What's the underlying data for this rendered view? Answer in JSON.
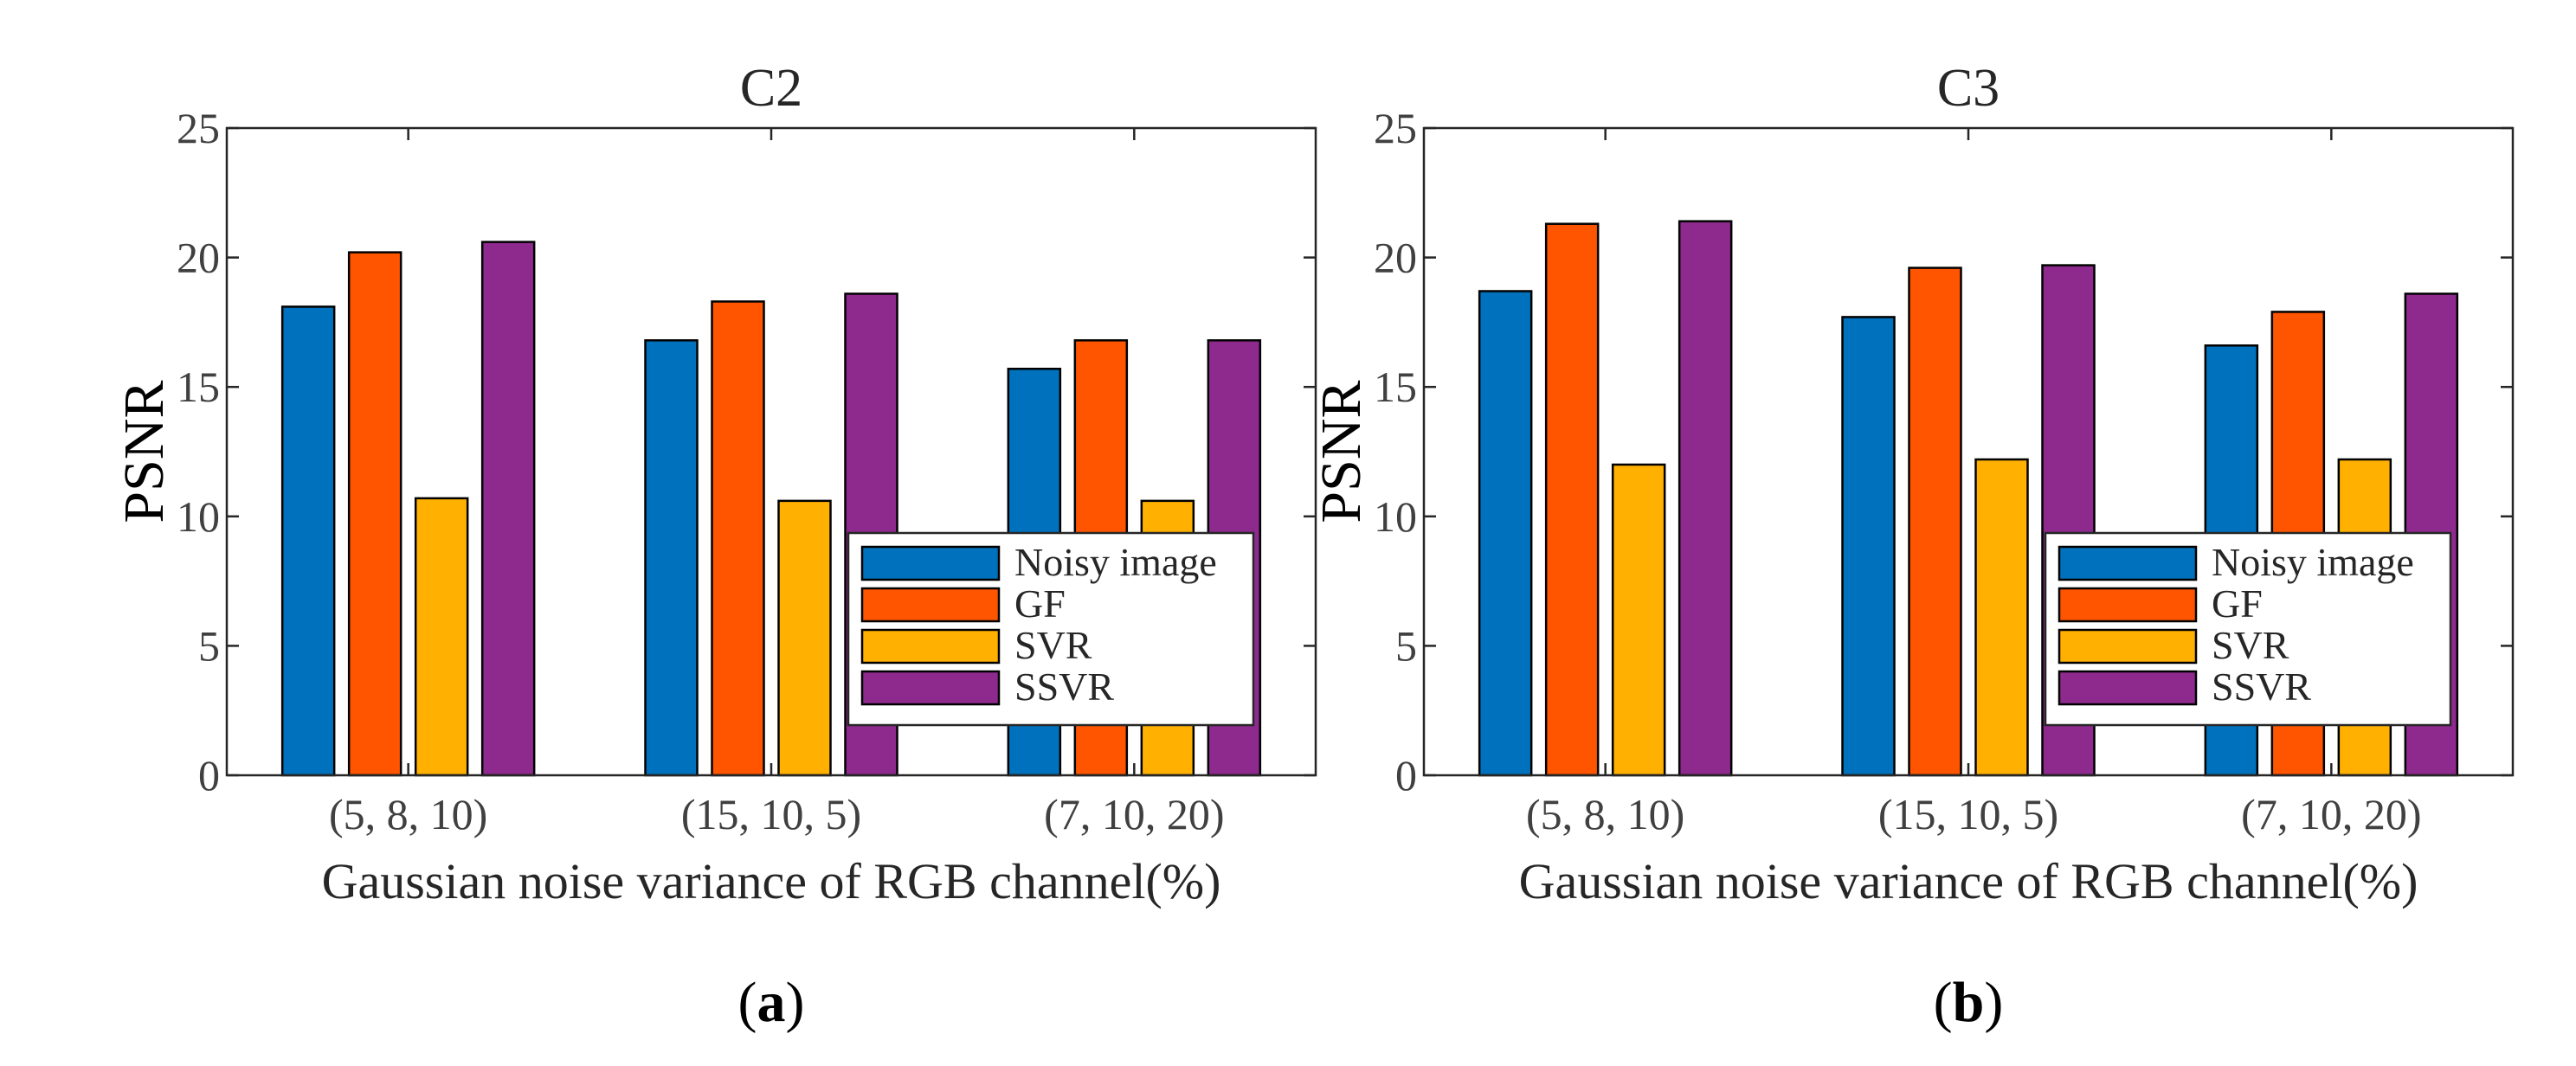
{
  "chart_data": [
    {
      "type": "bar",
      "title": "C2",
      "xlabel": "Gaussian noise variance of RGB channel(%)",
      "ylabel": "PSNR",
      "ylim": [
        0,
        25
      ],
      "yticks": [
        "0",
        "5",
        "10",
        "15",
        "20",
        "25"
      ],
      "categories": [
        "(5, 8, 10)",
        "(15, 10, 5)",
        "(7, 10, 20)"
      ],
      "series": [
        {
          "name": "Noisy image",
          "color": "#0072BD",
          "values": [
            18.1,
            16.8,
            15.7
          ]
        },
        {
          "name": "GF",
          "color": "#FF5500",
          "values": [
            20.2,
            18.3,
            16.8
          ]
        },
        {
          "name": "SVR",
          "color": "#FFB000",
          "values": [
            10.7,
            10.6,
            10.6
          ]
        },
        {
          "name": "SSVR",
          "color": "#8E2A8E",
          "values": [
            20.6,
            18.6,
            16.8
          ]
        }
      ],
      "legend_position": "bottom-right",
      "grid": false,
      "caption": "a"
    },
    {
      "type": "bar",
      "title": "C3",
      "xlabel": "Gaussian noise variance of RGB channel(%)",
      "ylabel": "PSNR",
      "ylim": [
        0,
        25
      ],
      "yticks": [
        "0",
        "5",
        "10",
        "15",
        "20",
        "25"
      ],
      "categories": [
        "(5, 8, 10)",
        "(15, 10, 5)",
        "(7, 10, 20)"
      ],
      "series": [
        {
          "name": "Noisy image",
          "color": "#0072BD",
          "values": [
            18.7,
            17.7,
            16.6
          ]
        },
        {
          "name": "GF",
          "color": "#FF5500",
          "values": [
            21.3,
            19.6,
            17.9
          ]
        },
        {
          "name": "SVR",
          "color": "#FFB000",
          "values": [
            12.0,
            12.2,
            12.2
          ]
        },
        {
          "name": "SSVR",
          "color": "#8E2A8E",
          "values": [
            21.4,
            19.7,
            18.6
          ]
        }
      ],
      "legend_position": "bottom-right",
      "grid": false,
      "caption": "b"
    }
  ]
}
